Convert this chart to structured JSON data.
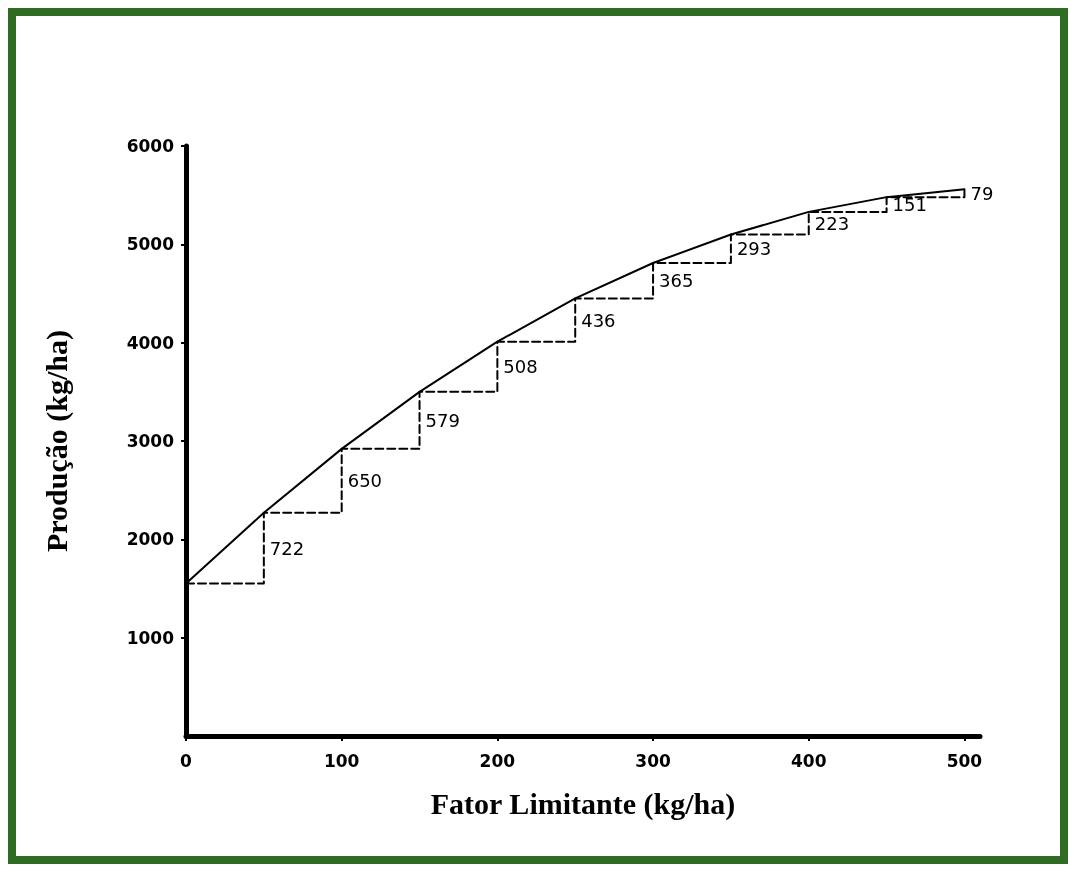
{
  "chart_data": {
    "type": "line",
    "xlabel": "Fator Limitante (kg/ha)",
    "ylabel": "Produção (kg/ha)",
    "x": [
      0,
      50,
      100,
      150,
      200,
      250,
      300,
      350,
      400,
      450,
      500
    ],
    "series": [
      {
        "type": "line",
        "color": "#000000",
        "line_style": "solid",
        "values": [
          1550,
          2270,
          2920,
          3500,
          4010,
          4450,
          4810,
          5100,
          5330,
          5480,
          5560
        ]
      },
      {
        "type": "step",
        "color": "#000000",
        "line_style": "dashed",
        "values": [
          1550,
          2270,
          2920,
          3500,
          4010,
          4450,
          4810,
          5100,
          5330,
          5480,
          5560
        ]
      }
    ],
    "annotations": [
      {
        "text": "722",
        "x": 50,
        "y": 1911
      },
      {
        "text": "650",
        "x": 100,
        "y": 2597
      },
      {
        "text": "579",
        "x": 150,
        "y": 3212
      },
      {
        "text": "508",
        "x": 200,
        "y": 3755
      },
      {
        "text": "436",
        "x": 250,
        "y": 4227
      },
      {
        "text": "365",
        "x": 300,
        "y": 4628
      },
      {
        "text": "293",
        "x": 350,
        "y": 4957
      },
      {
        "text": "223",
        "x": 400,
        "y": 5215
      },
      {
        "text": "151",
        "x": 450,
        "y": 5402
      },
      {
        "text": "79",
        "x": 500,
        "y": 5517
      }
    ],
    "xlim": [
      0,
      510
    ],
    "xticks": [
      0,
      100,
      200,
      300,
      400,
      500
    ],
    "ylim": [
      0,
      6000
    ],
    "yticks": [
      1000,
      2000,
      3000,
      4000,
      5000,
      6000
    ],
    "grid": false,
    "marker": "none"
  }
}
